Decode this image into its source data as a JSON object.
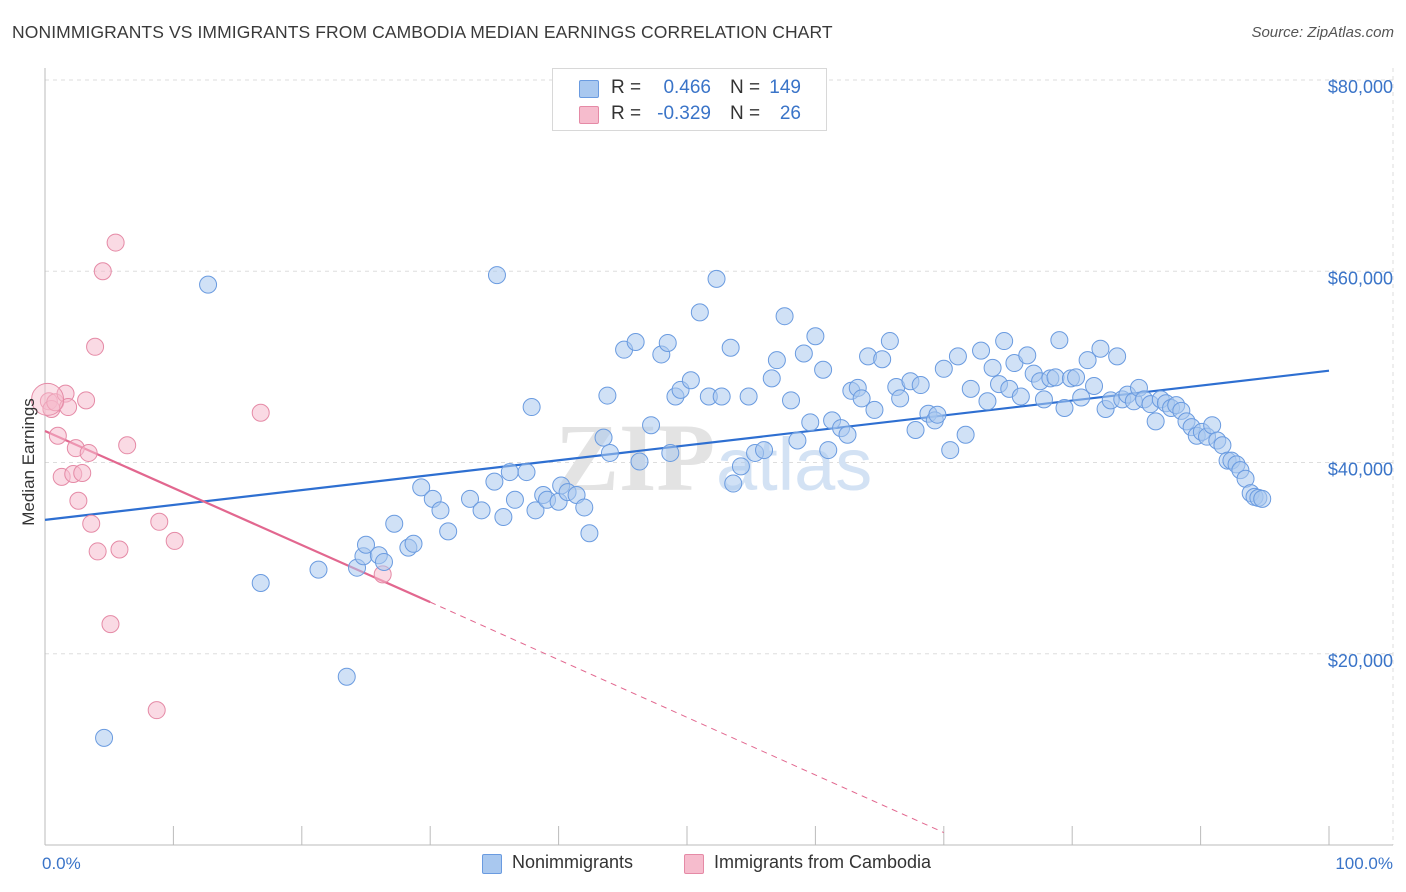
{
  "header": {
    "title": "NONIMMIGRANTS VS IMMIGRANTS FROM CAMBODIA MEDIAN EARNINGS CORRELATION CHART",
    "source": "Source: ZipAtlas.com"
  },
  "watermark": {
    "zip": "ZIP",
    "atlas": "atlas"
  },
  "legend": {
    "rows": [
      {
        "r_label": "R =",
        "r_value": "0.466",
        "n_label": "N =",
        "n_value": "149"
      },
      {
        "r_label": "R =",
        "r_value": "-0.329",
        "n_label": "N =",
        "n_value": "26"
      }
    ]
  },
  "bottom_legend": {
    "series1": "Nonimmigrants",
    "series2": "Immigrants from Cambodia"
  },
  "colors": {
    "blue_fill": "#a9c8ef",
    "blue_stroke": "#6a9be0",
    "blue_line": "#2e6fd1",
    "pink_fill": "#f6bccd",
    "pink_stroke": "#e58aa6",
    "pink_line": "#e2678f",
    "axis_text": "#3a74c8",
    "grid": "#dddddd"
  },
  "chart_data": {
    "type": "scatter",
    "title": "NONIMMIGRANTS VS IMMIGRANTS FROM CAMBODIA MEDIAN EARNINGS CORRELATION CHART",
    "xlabel": "",
    "ylabel": "Median Earnings",
    "xlim": [
      0,
      100
    ],
    "ylim": [
      0,
      80000
    ],
    "x_tick_labels": [
      "0.0%",
      "100.0%"
    ],
    "y_ticks": [
      20000,
      40000,
      60000,
      80000
    ],
    "y_tick_labels": [
      "$20,000",
      "$40,000",
      "$60,000",
      "$80,000"
    ],
    "grid": true,
    "legend_position": "top-center",
    "series": [
      {
        "name": "Nonimmigrants",
        "r": 0.466,
        "n": 149,
        "trend": {
          "x": [
            0,
            100
          ],
          "y": [
            34000,
            49600
          ]
        },
        "points": [
          [
            4.6,
            11200
          ],
          [
            12.7,
            58600
          ],
          [
            16.8,
            27400
          ],
          [
            21.3,
            28800
          ],
          [
            23.5,
            17600
          ],
          [
            24.3,
            29000
          ],
          [
            24.8,
            30200
          ],
          [
            25.0,
            31400
          ],
          [
            26.0,
            30300
          ],
          [
            26.4,
            29600
          ],
          [
            27.2,
            33600
          ],
          [
            28.3,
            31100
          ],
          [
            28.7,
            31500
          ],
          [
            29.3,
            37400
          ],
          [
            30.2,
            36200
          ],
          [
            30.8,
            35000
          ],
          [
            31.4,
            32800
          ],
          [
            33.1,
            36200
          ],
          [
            34.0,
            35000
          ],
          [
            35.0,
            38000
          ],
          [
            35.2,
            59600
          ],
          [
            35.7,
            34300
          ],
          [
            36.2,
            39000
          ],
          [
            36.6,
            36100
          ],
          [
            37.5,
            39000
          ],
          [
            37.9,
            45800
          ],
          [
            38.2,
            35000
          ],
          [
            38.8,
            36600
          ],
          [
            39.1,
            36100
          ],
          [
            40.0,
            35900
          ],
          [
            40.2,
            37600
          ],
          [
            40.7,
            36900
          ],
          [
            41.4,
            36600
          ],
          [
            42.0,
            35300
          ],
          [
            42.4,
            32600
          ],
          [
            43.5,
            42600
          ],
          [
            43.8,
            47000
          ],
          [
            44.0,
            41000
          ],
          [
            45.1,
            51800
          ],
          [
            46.0,
            52600
          ],
          [
            46.3,
            40100
          ],
          [
            47.2,
            43900
          ],
          [
            48.0,
            51300
          ],
          [
            48.5,
            52500
          ],
          [
            48.7,
            41000
          ],
          [
            49.1,
            46900
          ],
          [
            49.5,
            47600
          ],
          [
            50.3,
            48600
          ],
          [
            51.0,
            55700
          ],
          [
            51.7,
            46900
          ],
          [
            52.3,
            59200
          ],
          [
            52.7,
            46900
          ],
          [
            53.4,
            52000
          ],
          [
            53.6,
            37800
          ],
          [
            54.2,
            39600
          ],
          [
            54.8,
            46900
          ],
          [
            55.3,
            41000
          ],
          [
            56.0,
            41300
          ],
          [
            56.6,
            48800
          ],
          [
            57.0,
            50700
          ],
          [
            57.6,
            55300
          ],
          [
            58.1,
            46500
          ],
          [
            58.6,
            42300
          ],
          [
            59.1,
            51400
          ],
          [
            59.6,
            44200
          ],
          [
            60.0,
            53200
          ],
          [
            60.6,
            49700
          ],
          [
            61.0,
            41300
          ],
          [
            61.3,
            44400
          ],
          [
            62.0,
            43600
          ],
          [
            62.5,
            42900
          ],
          [
            62.8,
            47500
          ],
          [
            63.3,
            47800
          ],
          [
            63.6,
            46700
          ],
          [
            64.1,
            51100
          ],
          [
            64.6,
            45500
          ],
          [
            65.2,
            50800
          ],
          [
            65.8,
            52700
          ],
          [
            66.3,
            47900
          ],
          [
            66.6,
            46700
          ],
          [
            67.4,
            48500
          ],
          [
            67.8,
            43400
          ],
          [
            68.2,
            48100
          ],
          [
            68.8,
            45100
          ],
          [
            69.3,
            44400
          ],
          [
            69.5,
            45000
          ],
          [
            70.0,
            49800
          ],
          [
            70.5,
            41300
          ],
          [
            71.1,
            51100
          ],
          [
            71.7,
            42900
          ],
          [
            72.1,
            47700
          ],
          [
            72.9,
            51700
          ],
          [
            73.4,
            46400
          ],
          [
            73.8,
            49900
          ],
          [
            74.3,
            48200
          ],
          [
            74.7,
            52700
          ],
          [
            75.1,
            47700
          ],
          [
            75.5,
            50400
          ],
          [
            76.0,
            46900
          ],
          [
            76.5,
            51200
          ],
          [
            77.0,
            49300
          ],
          [
            77.5,
            48500
          ],
          [
            77.8,
            46600
          ],
          [
            78.3,
            48800
          ],
          [
            78.7,
            48900
          ],
          [
            79.0,
            52800
          ],
          [
            79.4,
            45700
          ],
          [
            79.9,
            48800
          ],
          [
            80.3,
            48900
          ],
          [
            80.7,
            46800
          ],
          [
            81.2,
            50700
          ],
          [
            81.7,
            48000
          ],
          [
            82.2,
            51900
          ],
          [
            82.6,
            45600
          ],
          [
            83.0,
            46500
          ],
          [
            83.5,
            51100
          ],
          [
            83.9,
            46600
          ],
          [
            84.3,
            47100
          ],
          [
            84.8,
            46400
          ],
          [
            85.2,
            47800
          ],
          [
            85.6,
            46600
          ],
          [
            86.1,
            46100
          ],
          [
            86.5,
            44300
          ],
          [
            86.9,
            46600
          ],
          [
            87.3,
            46200
          ],
          [
            87.7,
            45700
          ],
          [
            88.1,
            46000
          ],
          [
            88.5,
            45400
          ],
          [
            88.9,
            44300
          ],
          [
            89.3,
            43700
          ],
          [
            89.7,
            42800
          ],
          [
            90.1,
            43200
          ],
          [
            90.5,
            42700
          ],
          [
            90.9,
            43900
          ],
          [
            91.3,
            42300
          ],
          [
            91.7,
            41800
          ],
          [
            92.1,
            40200
          ],
          [
            92.4,
            40200
          ],
          [
            92.8,
            39800
          ],
          [
            93.1,
            39200
          ],
          [
            93.5,
            38300
          ],
          [
            93.9,
            36800
          ],
          [
            94.2,
            36400
          ],
          [
            94.5,
            36300
          ],
          [
            94.8,
            36200
          ]
        ]
      },
      {
        "name": "Immigrants from Cambodia",
        "r": -0.329,
        "n": 26,
        "trend": {
          "x": [
            0,
            30
          ],
          "y": [
            43300,
            25400
          ]
        },
        "trend_extension": {
          "x": [
            30,
            70
          ],
          "y": [
            25400,
            1300
          ]
        },
        "points": [
          [
            0.3,
            46400
          ],
          [
            0.5,
            45600
          ],
          [
            0.8,
            46300
          ],
          [
            1.0,
            42800
          ],
          [
            1.3,
            38500
          ],
          [
            1.6,
            47200
          ],
          [
            1.8,
            45800
          ],
          [
            2.2,
            38800
          ],
          [
            2.4,
            41500
          ],
          [
            2.6,
            36000
          ],
          [
            2.9,
            38900
          ],
          [
            3.2,
            46500
          ],
          [
            3.4,
            41000
          ],
          [
            3.6,
            33600
          ],
          [
            3.9,
            52100
          ],
          [
            4.1,
            30700
          ],
          [
            4.5,
            60000
          ],
          [
            5.1,
            23100
          ],
          [
            5.5,
            63000
          ],
          [
            5.8,
            30900
          ],
          [
            6.4,
            41800
          ],
          [
            8.7,
            14100
          ],
          [
            8.9,
            33800
          ],
          [
            10.1,
            31800
          ],
          [
            16.8,
            45200
          ],
          [
            26.3,
            28300
          ]
        ]
      }
    ]
  }
}
